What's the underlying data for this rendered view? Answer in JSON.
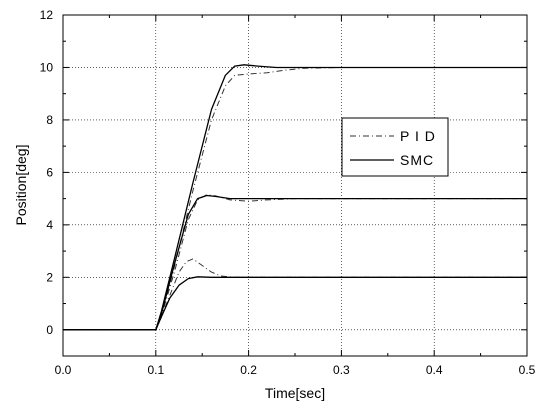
{
  "chart_data": {
    "type": "line",
    "xlabel": "Time[sec]",
    "ylabel": "Position[deg]",
    "xlim": [
      0.0,
      0.5
    ],
    "ylim": [
      -1,
      12
    ],
    "xticks": [
      0.0,
      0.1,
      0.2,
      0.3,
      0.4,
      0.5
    ],
    "xtick_labels": [
      "0.0",
      "0.1",
      "0.2",
      "0.3",
      "0.4",
      "0.5"
    ],
    "yticks": [
      0,
      2,
      4,
      6,
      8,
      10,
      12
    ],
    "ytick_labels": [
      "0",
      "2",
      "4",
      "6",
      "8",
      "10",
      "12"
    ],
    "grid": true,
    "legend_position": "right",
    "series": [
      {
        "name": "P I D",
        "style": "dash-dot",
        "color": "#333333",
        "curves": [
          [
            [
              0.0,
              0
            ],
            [
              0.1,
              0
            ],
            [
              0.105,
              0.4
            ],
            [
              0.115,
              1.3
            ],
            [
              0.125,
              2.2
            ],
            [
              0.133,
              2.6
            ],
            [
              0.14,
              2.7
            ],
            [
              0.15,
              2.45
            ],
            [
              0.16,
              2.2
            ],
            [
              0.17,
              2.05
            ],
            [
              0.185,
              2.0
            ],
            [
              0.5,
              2.0
            ]
          ],
          [
            [
              0.0,
              0
            ],
            [
              0.1,
              0
            ],
            [
              0.105,
              0.4
            ],
            [
              0.12,
              2.2
            ],
            [
              0.135,
              4.2
            ],
            [
              0.145,
              4.95
            ],
            [
              0.155,
              5.15
            ],
            [
              0.165,
              5.1
            ],
            [
              0.18,
              4.95
            ],
            [
              0.2,
              4.9
            ],
            [
              0.22,
              4.95
            ],
            [
              0.25,
              5.0
            ],
            [
              0.5,
              5.0
            ]
          ],
          [
            [
              0.0,
              0
            ],
            [
              0.1,
              0
            ],
            [
              0.105,
              0.4
            ],
            [
              0.12,
              2.4
            ],
            [
              0.14,
              5.3
            ],
            [
              0.16,
              8.0
            ],
            [
              0.175,
              9.3
            ],
            [
              0.185,
              9.7
            ],
            [
              0.2,
              9.75
            ],
            [
              0.22,
              9.8
            ],
            [
              0.24,
              9.9
            ],
            [
              0.26,
              9.97
            ],
            [
              0.3,
              10.0
            ],
            [
              0.5,
              10.0
            ]
          ]
        ]
      },
      {
        "name": "SMC",
        "style": "solid",
        "color": "#000000",
        "curves": [
          [
            [
              0.0,
              0
            ],
            [
              0.1,
              0
            ],
            [
              0.106,
              0.5
            ],
            [
              0.115,
              1.2
            ],
            [
              0.125,
              1.7
            ],
            [
              0.135,
              1.95
            ],
            [
              0.145,
              2.02
            ],
            [
              0.16,
              2.0
            ],
            [
              0.5,
              2.0
            ]
          ],
          [
            [
              0.0,
              0
            ],
            [
              0.1,
              0
            ],
            [
              0.106,
              0.6
            ],
            [
              0.12,
              2.5
            ],
            [
              0.135,
              4.4
            ],
            [
              0.145,
              5.0
            ],
            [
              0.155,
              5.12
            ],
            [
              0.165,
              5.08
            ],
            [
              0.18,
              5.0
            ],
            [
              0.5,
              5.0
            ]
          ],
          [
            [
              0.0,
              0
            ],
            [
              0.1,
              0
            ],
            [
              0.106,
              0.7
            ],
            [
              0.12,
              2.7
            ],
            [
              0.14,
              5.6
            ],
            [
              0.16,
              8.4
            ],
            [
              0.175,
              9.7
            ],
            [
              0.185,
              10.05
            ],
            [
              0.195,
              10.1
            ],
            [
              0.21,
              10.05
            ],
            [
              0.23,
              10.0
            ],
            [
              0.5,
              10.0
            ]
          ]
        ]
      }
    ]
  }
}
